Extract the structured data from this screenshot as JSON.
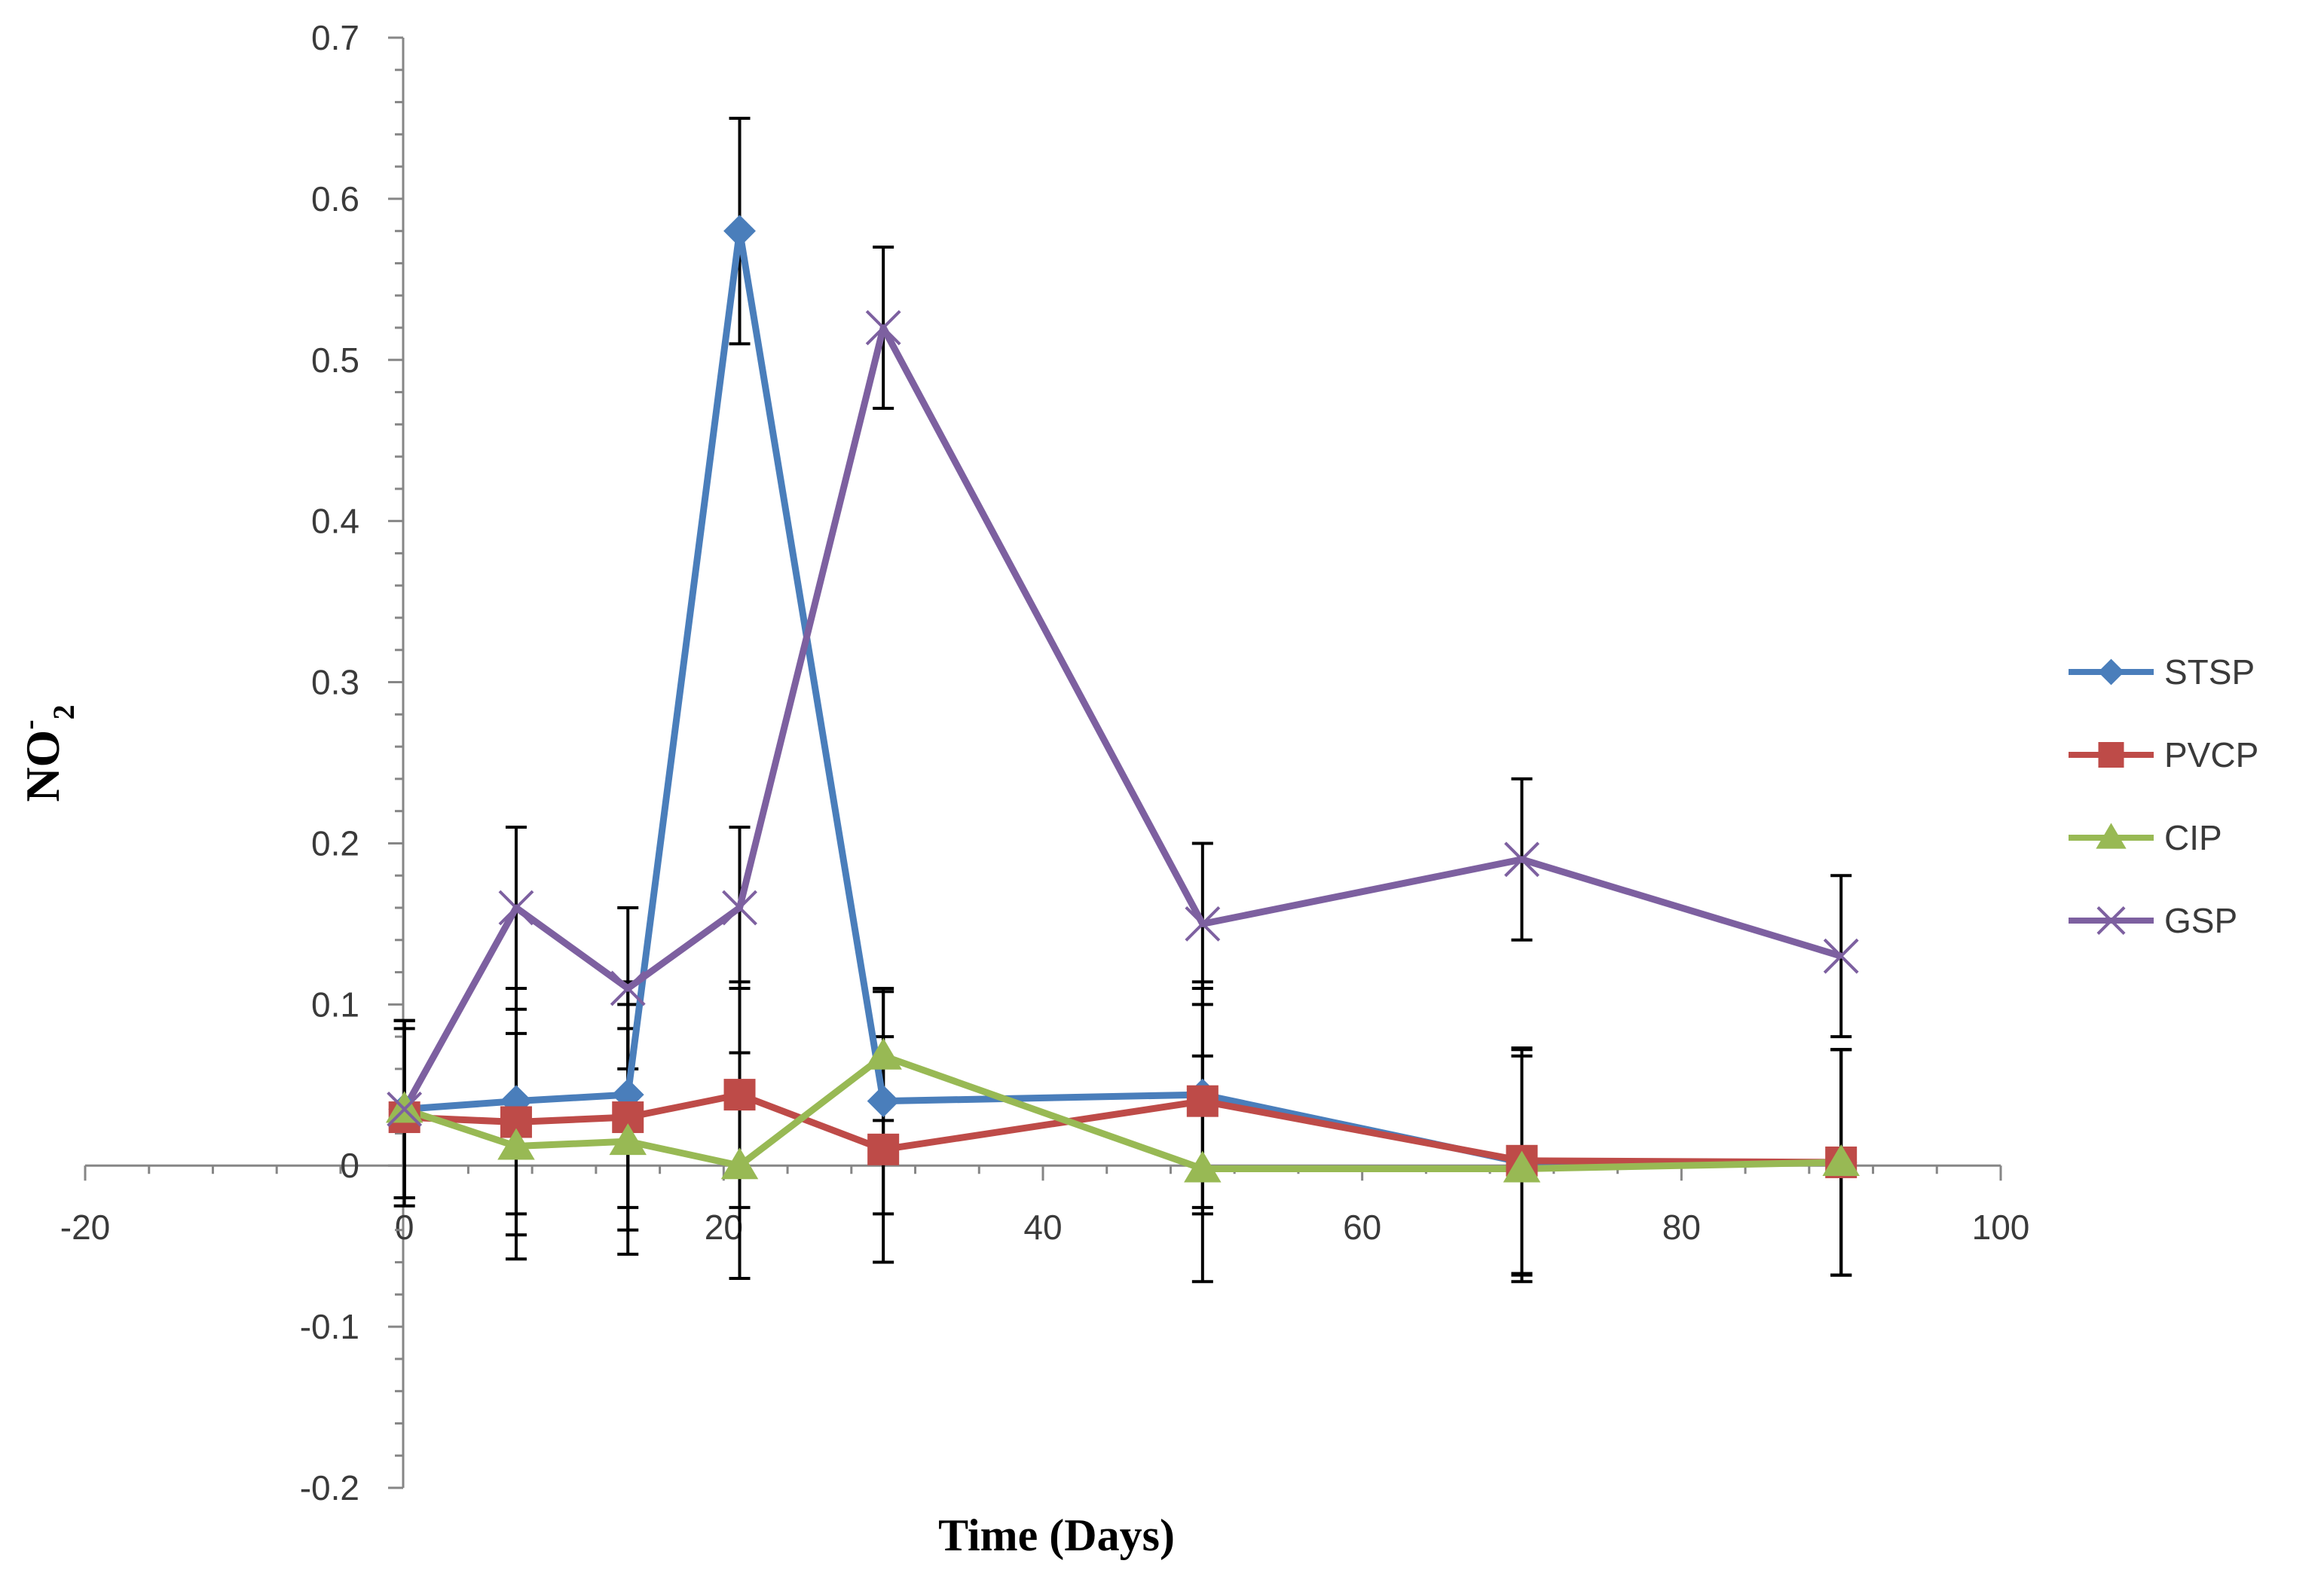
{
  "chart_data": {
    "type": "line",
    "title": "",
    "xlabel": "Time (Days)",
    "ylabel": {
      "base": "NO",
      "sup": "-",
      "sub": "2"
    },
    "xlim": [
      -20,
      100
    ],
    "ylim": [
      -0.2,
      0.7
    ],
    "x_ticks": [
      -20,
      0,
      20,
      40,
      60,
      80,
      100
    ],
    "y_ticks": [
      -0.2,
      -0.1,
      0,
      0.1,
      0.2,
      0.3,
      0.4,
      0.5,
      0.6,
      0.7
    ],
    "x_tick_labels": [
      "-20",
      "0",
      "20",
      "40",
      "60",
      "80",
      "100"
    ],
    "y_tick_labels": [
      "-0.2",
      "-0.1",
      "0",
      "0.1",
      "0.2",
      "0.3",
      "0.4",
      "0.5",
      "0.6",
      "0.7"
    ],
    "grid": false,
    "legend_position": "right",
    "x": [
      0,
      7,
      14,
      21,
      30,
      50,
      70,
      90
    ],
    "series": [
      {
        "name": "STSP",
        "color": "#4a7ebb",
        "marker": "diamond",
        "values": [
          0.035,
          0.04,
          0.044,
          0.58,
          0.04,
          0.044,
          0.002,
          0.002
        ],
        "error": [
          0.055,
          0.07,
          0.07,
          0.07,
          0.07,
          0.07,
          0.07,
          0.07
        ]
      },
      {
        "name": "PVCP",
        "color": "#be4b48",
        "marker": "square",
        "values": [
          0.03,
          0.027,
          0.03,
          0.044,
          0.01,
          0.04,
          0.003,
          0.002
        ],
        "error": [
          0.055,
          0.07,
          0.07,
          0.07,
          0.07,
          0.07,
          0.07,
          0.07
        ]
      },
      {
        "name": "CIP",
        "color": "#98b954",
        "marker": "triangle",
        "values": [
          0.035,
          0.012,
          0.015,
          0.0,
          0.068,
          -0.002,
          -0.002,
          0.002
        ],
        "error": [
          0.055,
          0.07,
          0.07,
          0.07,
          0.04,
          0.07,
          0.07,
          0.07
        ]
      },
      {
        "name": "GSP",
        "color": "#7d60a0",
        "marker": "x",
        "values": [
          0.035,
          0.16,
          0.11,
          0.16,
          0.52,
          0.15,
          0.19,
          0.13
        ],
        "error": [
          0.055,
          0.05,
          0.05,
          0.05,
          0.05,
          0.05,
          0.05,
          0.05
        ]
      }
    ]
  }
}
